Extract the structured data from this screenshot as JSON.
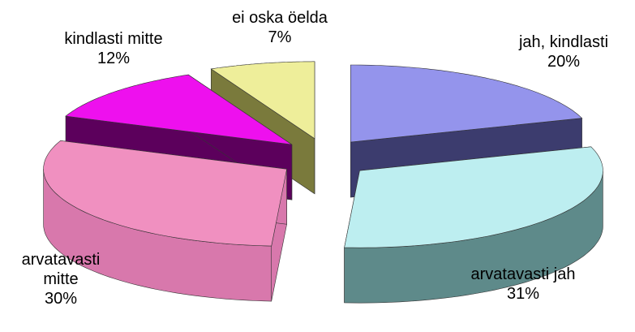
{
  "chart_data": {
    "type": "pie",
    "categories": [
      "jah, kindlasti",
      "arvatavasti jah",
      "arvatavasti mitte",
      "kindlasti mitte",
      "ei oska öelda"
    ],
    "values": [
      20,
      31,
      30,
      12,
      7
    ],
    "value_labels": [
      "20%",
      "31%",
      "30%",
      "12%",
      "7%"
    ],
    "colors": [
      "#9494ec",
      "#bdeef0",
      "#f090c0",
      "#ee10ee",
      "#eeee9a"
    ],
    "side_colors": [
      "#3c3c6e",
      "#5e8a8a",
      "#d878ac",
      "#5c005c",
      "#7a7a3c"
    ]
  }
}
